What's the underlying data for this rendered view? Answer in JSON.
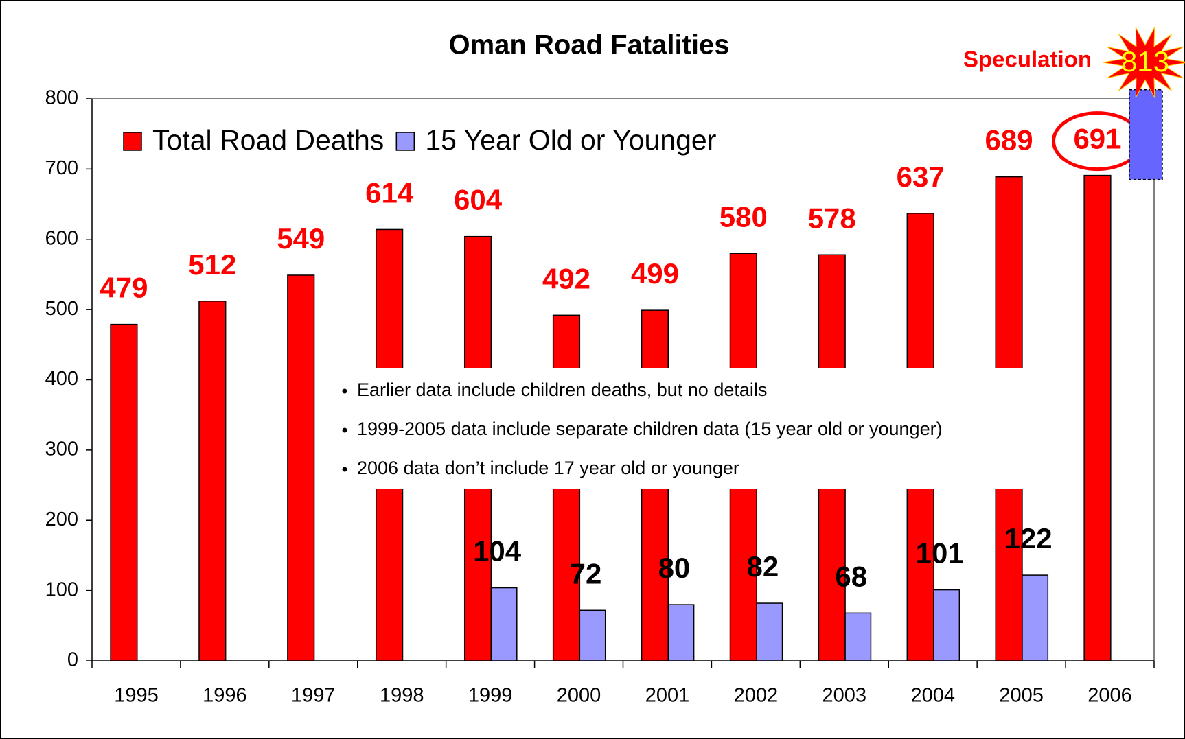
{
  "chart_data": {
    "type": "bar",
    "title": "Oman Road Fatalities",
    "categories": [
      "1995",
      "1996",
      "1997",
      "1998",
      "1999",
      "2000",
      "2001",
      "2002",
      "2003",
      "2004",
      "2005",
      "2006"
    ],
    "series": [
      {
        "name": "Total Road Deaths",
        "color": "#ff0000",
        "values": [
          479,
          512,
          549,
          614,
          604,
          492,
          499,
          580,
          578,
          637,
          689,
          691
        ]
      },
      {
        "name": "15 Year Old or Younger",
        "color": "#9999ff",
        "values": [
          null,
          null,
          null,
          null,
          104,
          72,
          80,
          82,
          68,
          101,
          122,
          null
        ]
      }
    ],
    "ylim": [
      0,
      800
    ],
    "yticks": [
      0,
      100,
      200,
      300,
      400,
      500,
      600,
      700,
      800
    ],
    "legend": "top-left",
    "speculation": {
      "label": "Speculation",
      "value": 813,
      "color": "#6666ff"
    },
    "notes": [
      "Earlier data include children deaths, but no details",
      "1999-2005 data include separate children data (15 year old or younger)",
      "2006 data don’t include 17 year old or younger"
    ]
  }
}
